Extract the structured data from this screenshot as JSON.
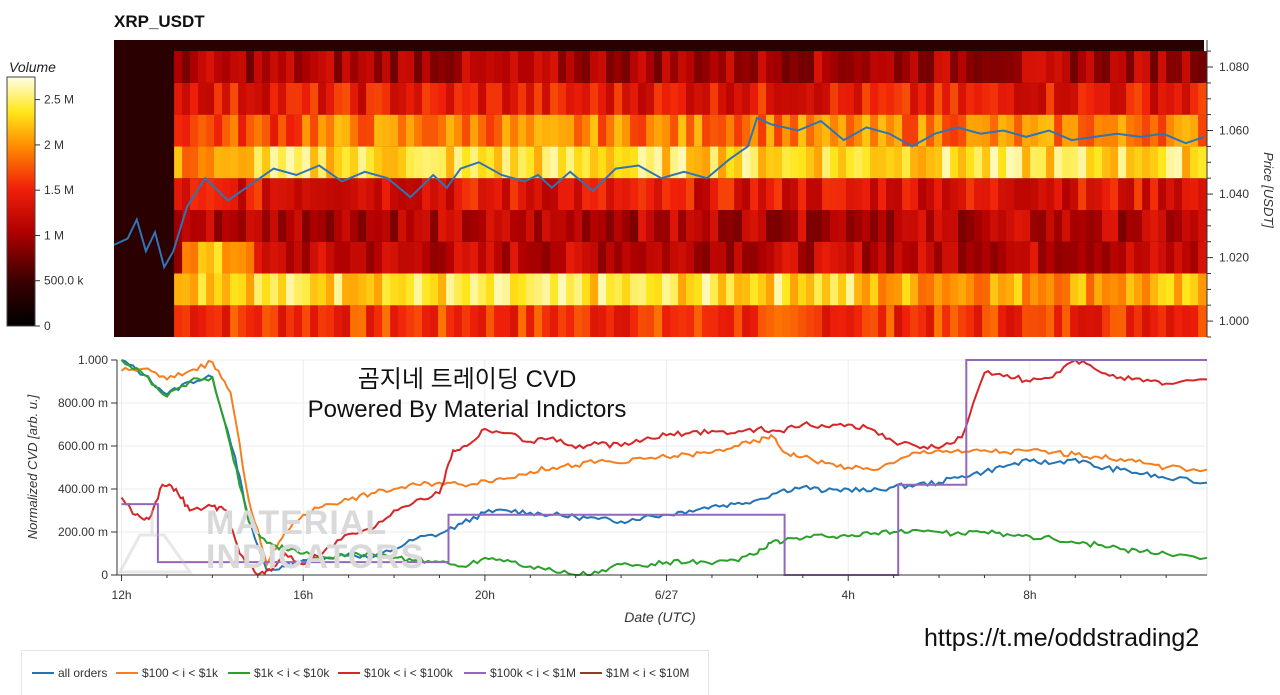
{
  "page": {
    "title": "XRP_USDT",
    "overlay_line1": "곰지네 트레이딩 CVD",
    "overlay_line2": "Powered By Material Indictors",
    "link": "https://t.me/oddstrading2",
    "watermark_line1": "MATERIAL",
    "watermark_line2": "INDICATORS"
  },
  "colors": {
    "price_line": "#2f74b5",
    "all_orders": "#2174b5",
    "b100_1k": "#f57f20",
    "b1k_10k": "#2ca02c",
    "b10k_100k": "#d62728",
    "b100k_1m": "#9467bd",
    "b1m_10m": "#8c3c2c"
  },
  "chart_data": [
    {
      "type": "heatmap",
      "title": "XRP_USDT",
      "colorbar_label": "Volume",
      "colorbar_ticks": [
        "0",
        "500.0 k",
        "1 M",
        "1.5 M",
        "2 M",
        "2.5 M"
      ],
      "colorbar_values": [
        0,
        500000,
        1000000,
        1500000,
        2000000,
        2500000
      ],
      "ylabel": "Price [USDT]",
      "yticks": [
        "1.000",
        "1.020",
        "1.040",
        "1.060",
        "1.080"
      ],
      "ylim": [
        0.995,
        1.0885
      ],
      "x_hours_range": [
        11.9,
        24.6
      ],
      "price_levels": [
        1.0,
        1.01,
        1.02,
        1.03,
        1.04,
        1.05,
        1.06,
        1.07,
        1.08
      ],
      "level_intensity": [
        0.58,
        0.86,
        0.42,
        0.4,
        0.5,
        0.72,
        0.62,
        0.52,
        0.38
      ],
      "price_series": {
        "name": "price",
        "hours": [
          12.0,
          12.3,
          12.5,
          12.7,
          12.9,
          13.1,
          13.3,
          13.6,
          14.0,
          14.5,
          15.0,
          15.5,
          16.0,
          16.5,
          17.0,
          17.5,
          18.0,
          18.5,
          19.0,
          19.3,
          19.6,
          20.0,
          20.5,
          21.0,
          21.3,
          21.6,
          22.0,
          22.5,
          23.0,
          23.5,
          24.0,
          24.5,
          25.0,
          25.5,
          25.9,
          26.1,
          26.4,
          27.0,
          27.5,
          28.0,
          28.5,
          29.0,
          29.5,
          30.0,
          30.5,
          31.0,
          31.5,
          32.0,
          32.5,
          33.0,
          33.5,
          34.0,
          34.5,
          35.0,
          35.5,
          35.9
        ],
        "values": [
          1.024,
          1.026,
          1.032,
          1.022,
          1.028,
          1.017,
          1.022,
          1.036,
          1.045,
          1.038,
          1.043,
          1.048,
          1.046,
          1.049,
          1.044,
          1.047,
          1.045,
          1.039,
          1.046,
          1.042,
          1.048,
          1.05,
          1.046,
          1.044,
          1.046,
          1.042,
          1.047,
          1.041,
          1.048,
          1.049,
          1.045,
          1.047,
          1.045,
          1.051,
          1.055,
          1.064,
          1.062,
          1.06,
          1.063,
          1.057,
          1.061,
          1.059,
          1.055,
          1.059,
          1.061,
          1.059,
          1.06,
          1.058,
          1.06,
          1.057,
          1.058,
          1.059,
          1.058,
          1.059,
          1.056,
          1.058
        ]
      }
    },
    {
      "type": "line",
      "xlabel": "Date (UTC)",
      "ylabel": "Normalized CVD [arb. u.]",
      "xticks": [
        "12h",
        "16h",
        "20h",
        "6/27",
        "4h",
        "8h"
      ],
      "xtick_hours": [
        12,
        16,
        20,
        24,
        28,
        32
      ],
      "yticks": [
        "0",
        "200.00 m",
        "400.00 m",
        "600.00 m",
        "800.00 m",
        "1.000"
      ],
      "ytick_values": [
        0,
        0.2,
        0.4,
        0.6,
        0.8,
        1.0
      ],
      "xlim": [
        11.9,
        35.9
      ],
      "ylim": [
        0,
        1.0
      ],
      "series": [
        {
          "name": "all orders",
          "hours": [
            12.0,
            12.5,
            13.0,
            13.5,
            14.0,
            14.5,
            14.8,
            15.2,
            15.6,
            16.0,
            16.5,
            17.0,
            17.5,
            18.0,
            18.5,
            19.0,
            19.5,
            20.0,
            20.5,
            21.0,
            21.5,
            22.0,
            22.5,
            23.0,
            23.5,
            24.0,
            24.5,
            25.0,
            25.5,
            26.0,
            26.5,
            27.0,
            27.5,
            28.0,
            28.5,
            29.0,
            29.5,
            30.0,
            30.5,
            31.0,
            31.5,
            32.0,
            32.5,
            33.0,
            33.5,
            34.0,
            34.5,
            35.0,
            35.9
          ],
          "values": [
            1.0,
            0.93,
            0.84,
            0.9,
            0.92,
            0.55,
            0.25,
            0.02,
            0.04,
            0.07,
            0.08,
            0.1,
            0.08,
            0.12,
            0.17,
            0.19,
            0.24,
            0.29,
            0.3,
            0.29,
            0.28,
            0.27,
            0.26,
            0.25,
            0.27,
            0.28,
            0.3,
            0.32,
            0.33,
            0.35,
            0.39,
            0.41,
            0.39,
            0.4,
            0.39,
            0.41,
            0.42,
            0.43,
            0.46,
            0.48,
            0.51,
            0.53,
            0.52,
            0.54,
            0.5,
            0.49,
            0.47,
            0.45,
            0.43
          ],
          "color": "#2174b5"
        },
        {
          "name": "$100 < i < $1k",
          "hours": [
            12.0,
            12.5,
            13.0,
            13.5,
            14.0,
            14.4,
            14.8,
            15.2,
            15.6,
            16.0,
            16.5,
            17.0,
            17.5,
            18.0,
            18.5,
            19.0,
            19.5,
            20.0,
            20.5,
            21.0,
            21.5,
            22.0,
            22.5,
            23.0,
            23.5,
            24.0,
            24.5,
            25.0,
            25.5,
            26.0,
            26.3,
            26.6,
            27.0,
            27.5,
            28.0,
            28.5,
            29.0,
            29.5,
            30.0,
            30.5,
            31.0,
            31.5,
            32.0,
            32.5,
            33.0,
            33.5,
            34.0,
            34.5,
            35.0,
            35.9
          ],
          "values": [
            0.95,
            0.96,
            0.91,
            0.95,
            0.99,
            0.85,
            0.35,
            0.05,
            0.2,
            0.28,
            0.33,
            0.35,
            0.38,
            0.4,
            0.42,
            0.43,
            0.42,
            0.44,
            0.45,
            0.48,
            0.5,
            0.51,
            0.53,
            0.52,
            0.54,
            0.55,
            0.56,
            0.57,
            0.6,
            0.62,
            0.65,
            0.57,
            0.55,
            0.52,
            0.5,
            0.49,
            0.52,
            0.57,
            0.58,
            0.57,
            0.58,
            0.57,
            0.58,
            0.57,
            0.56,
            0.55,
            0.54,
            0.52,
            0.5,
            0.49
          ],
          "color": "#f57f20"
        },
        {
          "name": "$1k < i < $10k",
          "hours": [
            12.0,
            12.5,
            13.0,
            13.5,
            14.0,
            14.4,
            14.8,
            15.2,
            15.6,
            16.0,
            16.5,
            17.0,
            17.5,
            18.0,
            18.5,
            19.0,
            19.5,
            20.0,
            20.5,
            21.0,
            21.5,
            22.0,
            22.5,
            23.0,
            23.5,
            24.0,
            24.5,
            25.0,
            25.5,
            26.0,
            26.3,
            26.6,
            27.0,
            27.5,
            28.0,
            28.5,
            29.0,
            29.5,
            30.0,
            30.5,
            31.0,
            31.5,
            32.0,
            32.5,
            33.0,
            33.5,
            34.0,
            34.5,
            35.0,
            35.9
          ],
          "values": [
            1.0,
            0.93,
            0.83,
            0.9,
            0.92,
            0.6,
            0.25,
            0.15,
            0.12,
            0.1,
            0.08,
            0.09,
            0.1,
            0.08,
            0.07,
            0.06,
            0.04,
            0.08,
            0.07,
            0.04,
            0.02,
            0.0,
            0.01,
            0.05,
            0.04,
            0.06,
            0.06,
            0.05,
            0.07,
            0.1,
            0.15,
            0.16,
            0.17,
            0.18,
            0.18,
            0.19,
            0.2,
            0.21,
            0.2,
            0.19,
            0.2,
            0.19,
            0.18,
            0.17,
            0.15,
            0.14,
            0.12,
            0.11,
            0.1,
            0.08
          ],
          "color": "#2ca02c"
        },
        {
          "name": "$10k < i < $100k",
          "hours": [
            12.0,
            12.3,
            12.6,
            12.9,
            13.2,
            13.5,
            14.0,
            14.3,
            14.6,
            15.0,
            15.3,
            15.6,
            16.0,
            16.5,
            17.0,
            17.5,
            18.0,
            18.5,
            19.0,
            19.3,
            19.6,
            20.0,
            20.5,
            21.0,
            21.5,
            22.0,
            22.5,
            23.0,
            23.5,
            24.0,
            24.5,
            25.0,
            25.5,
            26.0,
            26.5,
            27.0,
            27.5,
            28.0,
            28.5,
            29.0,
            29.5,
            30.0,
            30.5,
            31.0,
            31.5,
            32.0,
            32.5,
            33.0,
            33.5,
            34.0,
            34.5,
            35.0,
            35.9
          ],
          "values": [
            0.36,
            0.28,
            0.26,
            0.42,
            0.4,
            0.3,
            0.32,
            0.3,
            0.1,
            0.0,
            0.02,
            0.1,
            0.05,
            0.12,
            0.19,
            0.21,
            0.3,
            0.35,
            0.38,
            0.58,
            0.6,
            0.68,
            0.66,
            0.62,
            0.64,
            0.59,
            0.61,
            0.6,
            0.63,
            0.65,
            0.66,
            0.67,
            0.66,
            0.68,
            0.67,
            0.7,
            0.69,
            0.7,
            0.68,
            0.62,
            0.6,
            0.59,
            0.64,
            0.94,
            0.93,
            0.9,
            0.92,
            1.0,
            0.95,
            0.92,
            0.9,
            0.89,
            0.91
          ],
          "color": "#d62728"
        },
        {
          "name": "$100k < i < $1M",
          "hours": [
            12.0,
            12.8,
            12.8,
            19.2,
            19.2,
            26.6,
            26.6,
            29.1,
            29.1,
            30.6,
            30.6,
            35.9
          ],
          "values": [
            0.33,
            0.33,
            0.06,
            0.06,
            0.28,
            0.28,
            0.0,
            0.0,
            0.42,
            0.42,
            1.0,
            1.0
          ],
          "color": "#9467bd"
        },
        {
          "name": "$1M < i < $10M",
          "hours": [],
          "values": [],
          "color": "#8c3c2c"
        }
      ]
    }
  ]
}
